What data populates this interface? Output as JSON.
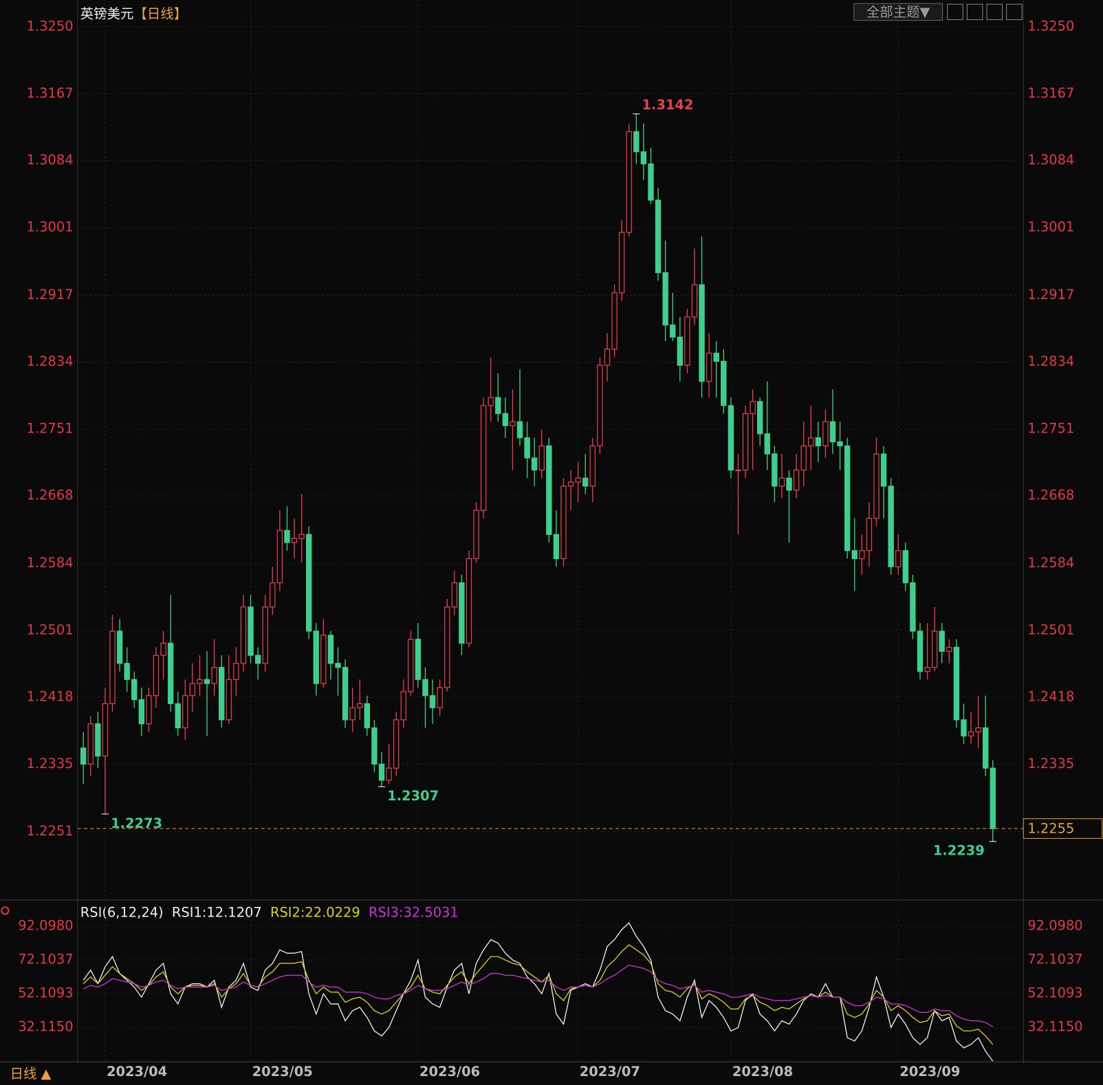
{
  "chart_data": [
    {
      "type": "candlestick",
      "title": "英镑美元",
      "period": "【日线】",
      "up_color": "#e8404f",
      "down_color": "#3ecf8e",
      "last_price_color": "#e8a33a",
      "xlim": [
        -0.8,
        129.2
      ],
      "xticks": [
        {
          "value": 3,
          "label": "2023/04"
        },
        {
          "value": 23,
          "label": "2023/05"
        },
        {
          "value": 46,
          "label": "2023/06"
        },
        {
          "value": 68,
          "label": "2023/07"
        },
        {
          "value": 89,
          "label": "2023/08"
        },
        {
          "value": 112,
          "label": "2023/09"
        }
      ],
      "ylim": [
        1.2168,
        1.3279
      ],
      "yticks": [
        {
          "value": 1.325,
          "label": "1.3250"
        },
        1.3167,
        1.3084,
        1.3001,
        1.2917,
        1.2834,
        1.2751,
        1.2668,
        1.2584,
        1.2501,
        1.2418,
        1.2335,
        1.2251
      ],
      "annotations": [
        1.3142,
        1.2307,
        1.2273,
        1.2239
      ],
      "candles": [
        [
          1.2355,
          1.2375,
          1.231,
          1.2335
        ],
        [
          1.2335,
          1.2395,
          1.232,
          1.2385
        ],
        [
          1.2385,
          1.24,
          1.233,
          1.2345
        ],
        [
          1.2345,
          1.243,
          1.2273,
          1.241
        ],
        [
          1.241,
          1.252,
          1.24,
          1.25
        ],
        [
          1.25,
          1.2515,
          1.245,
          1.246
        ],
        [
          1.246,
          1.248,
          1.2425,
          1.244
        ],
        [
          1.244,
          1.245,
          1.2405,
          1.2415
        ],
        [
          1.2415,
          1.243,
          1.237,
          1.2385
        ],
        [
          1.2385,
          1.243,
          1.2375,
          1.242
        ],
        [
          1.242,
          1.248,
          1.2405,
          1.247
        ],
        [
          1.247,
          1.25,
          1.244,
          1.2485
        ],
        [
          1.2485,
          1.2545,
          1.24,
          1.241
        ],
        [
          1.241,
          1.2425,
          1.237,
          1.238
        ],
        [
          1.238,
          1.244,
          1.2365,
          1.242
        ],
        [
          1.242,
          1.246,
          1.24,
          1.2435
        ],
        [
          1.2435,
          1.247,
          1.242,
          1.244
        ],
        [
          1.244,
          1.2475,
          1.237,
          1.2435
        ],
        [
          1.2435,
          1.249,
          1.242,
          1.2455
        ],
        [
          1.2455,
          1.247,
          1.238,
          1.239
        ],
        [
          1.239,
          1.247,
          1.2385,
          1.244
        ],
        [
          1.244,
          1.248,
          1.242,
          1.246
        ],
        [
          1.246,
          1.2545,
          1.245,
          1.253
        ],
        [
          1.253,
          1.2545,
          1.246,
          1.247
        ],
        [
          1.247,
          1.248,
          1.244,
          1.246
        ],
        [
          1.246,
          1.2545,
          1.245,
          1.253
        ],
        [
          1.253,
          1.258,
          1.252,
          1.256
        ],
        [
          1.256,
          1.265,
          1.255,
          1.2625
        ],
        [
          1.2625,
          1.2655,
          1.26,
          1.261
        ],
        [
          1.261,
          1.264,
          1.259,
          1.2615
        ],
        [
          1.2615,
          1.267,
          1.2585,
          1.262
        ],
        [
          1.262,
          1.263,
          1.249,
          1.25
        ],
        [
          1.25,
          1.251,
          1.242,
          1.2435
        ],
        [
          1.2435,
          1.2515,
          1.243,
          1.2495
        ],
        [
          1.2495,
          1.25,
          1.244,
          1.246
        ],
        [
          1.246,
          1.248,
          1.242,
          1.2455
        ],
        [
          1.2455,
          1.2465,
          1.238,
          1.239
        ],
        [
          1.239,
          1.243,
          1.2375,
          1.2405
        ],
        [
          1.2405,
          1.244,
          1.239,
          1.241
        ],
        [
          1.241,
          1.242,
          1.237,
          1.238
        ],
        [
          1.238,
          1.239,
          1.2325,
          1.2335
        ],
        [
          1.2335,
          1.235,
          1.2307,
          1.2315
        ],
        [
          1.2315,
          1.236,
          1.231,
          1.233
        ],
        [
          1.233,
          1.24,
          1.232,
          1.239
        ],
        [
          1.239,
          1.244,
          1.238,
          1.2425
        ],
        [
          1.2425,
          1.25,
          1.242,
          1.249
        ],
        [
          1.249,
          1.251,
          1.243,
          1.244
        ],
        [
          1.244,
          1.2455,
          1.238,
          1.242
        ],
        [
          1.242,
          1.244,
          1.2385,
          1.2405
        ],
        [
          1.2405,
          1.244,
          1.2395,
          1.243
        ],
        [
          1.243,
          1.254,
          1.2425,
          1.253
        ],
        [
          1.253,
          1.2575,
          1.252,
          1.256
        ],
        [
          1.256,
          1.257,
          1.247,
          1.2485
        ],
        [
          1.2485,
          1.26,
          1.248,
          1.259
        ],
        [
          1.259,
          1.266,
          1.2585,
          1.265
        ],
        [
          1.265,
          1.279,
          1.264,
          1.278
        ],
        [
          1.278,
          1.284,
          1.276,
          1.279
        ],
        [
          1.279,
          1.282,
          1.276,
          1.277
        ],
        [
          1.277,
          1.279,
          1.274,
          1.2755
        ],
        [
          1.2755,
          1.28,
          1.27,
          1.276
        ],
        [
          1.276,
          1.2825,
          1.273,
          1.274
        ],
        [
          1.274,
          1.276,
          1.269,
          1.2715
        ],
        [
          1.2715,
          1.274,
          1.268,
          1.27
        ],
        [
          1.27,
          1.275,
          1.269,
          1.273
        ],
        [
          1.273,
          1.274,
          1.261,
          1.262
        ],
        [
          1.262,
          1.265,
          1.258,
          1.259
        ],
        [
          1.259,
          1.269,
          1.258,
          1.268
        ],
        [
          1.268,
          1.27,
          1.265,
          1.2685
        ],
        [
          1.2685,
          1.271,
          1.266,
          1.269
        ],
        [
          1.269,
          1.272,
          1.267,
          1.268
        ],
        [
          1.268,
          1.274,
          1.266,
          1.273
        ],
        [
          1.273,
          1.284,
          1.272,
          1.283
        ],
        [
          1.283,
          1.287,
          1.281,
          1.285
        ],
        [
          1.285,
          1.293,
          1.284,
          1.292
        ],
        [
          1.292,
          1.301,
          1.291,
          1.2995
        ],
        [
          1.2995,
          1.313,
          1.299,
          1.312
        ],
        [
          1.312,
          1.3142,
          1.308,
          1.3095
        ],
        [
          1.3095,
          1.313,
          1.306,
          1.308
        ],
        [
          1.308,
          1.31,
          1.303,
          1.3035
        ],
        [
          1.3035,
          1.305,
          1.2935,
          1.2945
        ],
        [
          1.2945,
          1.2985,
          1.286,
          1.288
        ],
        [
          1.288,
          1.292,
          1.286,
          1.2865
        ],
        [
          1.2865,
          1.289,
          1.281,
          1.283
        ],
        [
          1.283,
          1.29,
          1.282,
          1.289
        ],
        [
          1.289,
          1.2975,
          1.288,
          1.293
        ],
        [
          1.293,
          1.299,
          1.279,
          1.281
        ],
        [
          1.281,
          1.287,
          1.279,
          1.2845
        ],
        [
          1.2845,
          1.286,
          1.279,
          1.2835
        ],
        [
          1.2835,
          1.285,
          1.277,
          1.278
        ],
        [
          1.278,
          1.279,
          1.269,
          1.27
        ],
        [
          1.27,
          1.272,
          1.262,
          1.27
        ],
        [
          1.27,
          1.278,
          1.269,
          1.277
        ],
        [
          1.277,
          1.28,
          1.27,
          1.2785
        ],
        [
          1.2785,
          1.279,
          1.273,
          1.2745
        ],
        [
          1.2745,
          1.281,
          1.27,
          1.272
        ],
        [
          1.272,
          1.273,
          1.266,
          1.268
        ],
        [
          1.268,
          1.272,
          1.2665,
          1.269
        ],
        [
          1.269,
          1.27,
          1.261,
          1.2675
        ],
        [
          1.2675,
          1.272,
          1.2665,
          1.27
        ],
        [
          1.27,
          1.276,
          1.268,
          1.273
        ],
        [
          1.273,
          1.278,
          1.27,
          1.274
        ],
        [
          1.274,
          1.276,
          1.271,
          1.273
        ],
        [
          1.273,
          1.2775,
          1.2715,
          1.276
        ],
        [
          1.276,
          1.28,
          1.272,
          1.2735
        ],
        [
          1.2735,
          1.276,
          1.27,
          1.273
        ],
        [
          1.273,
          1.274,
          1.259,
          1.26
        ],
        [
          1.26,
          1.264,
          1.255,
          1.259
        ],
        [
          1.259,
          1.262,
          1.257,
          1.26
        ],
        [
          1.26,
          1.266,
          1.258,
          1.264
        ],
        [
          1.264,
          1.274,
          1.263,
          1.272
        ],
        [
          1.272,
          1.273,
          1.264,
          1.268
        ],
        [
          1.268,
          1.269,
          1.257,
          1.258
        ],
        [
          1.258,
          1.262,
          1.257,
          1.26
        ],
        [
          1.26,
          1.261,
          1.255,
          1.256
        ],
        [
          1.256,
          1.257,
          1.249,
          1.25
        ],
        [
          1.25,
          1.251,
          1.244,
          1.245
        ],
        [
          1.245,
          1.251,
          1.244,
          1.2455
        ],
        [
          1.2455,
          1.253,
          1.245,
          1.25
        ],
        [
          1.25,
          1.251,
          1.246,
          1.2475
        ],
        [
          1.2475,
          1.249,
          1.246,
          1.248
        ],
        [
          1.248,
          1.249,
          1.238,
          1.239
        ],
        [
          1.239,
          1.241,
          1.236,
          1.237
        ],
        [
          1.237,
          1.24,
          1.236,
          1.2375
        ],
        [
          1.2375,
          1.242,
          1.2355,
          1.238
        ],
        [
          1.238,
          1.242,
          1.232,
          1.233
        ],
        [
          1.233,
          1.234,
          1.2239,
          1.2255
        ]
      ]
    },
    {
      "type": "line",
      "label": "RSI(6,12,24)",
      "xlim": [
        -0.8,
        129.2
      ],
      "ylim": [
        12.53,
        105.43
      ],
      "yticks": [
        {
          "value": 92.098,
          "label": "92.0980"
        },
        72.1037,
        52.1093,
        {
          "value": 32.115,
          "label": "32.1150"
        }
      ],
      "series": [
        {
          "name": "RSI1:12.1207",
          "color": "#f0f0f0",
          "values": [
            60,
            66,
            58,
            68,
            74,
            64,
            60,
            56,
            50,
            58,
            66,
            70,
            52,
            46,
            56,
            58,
            58,
            56,
            60,
            44,
            56,
            60,
            70,
            56,
            54,
            66,
            70,
            78,
            76,
            76,
            77,
            52,
            40,
            52,
            46,
            46,
            36,
            42,
            44,
            38,
            30,
            27,
            32,
            42,
            52,
            60,
            72,
            50,
            46,
            44,
            56,
            66,
            70,
            52,
            70,
            78,
            84,
            82,
            76,
            72,
            70,
            62,
            58,
            52,
            64,
            40,
            34,
            54,
            56,
            58,
            56,
            66,
            80,
            84,
            90,
            94,
            86,
            80,
            72,
            50,
            42,
            40,
            36,
            50,
            60,
            38,
            48,
            44,
            38,
            30,
            32,
            48,
            52,
            40,
            36,
            30,
            36,
            34,
            40,
            48,
            52,
            50,
            58,
            50,
            50,
            26,
            24,
            30,
            44,
            62,
            50,
            32,
            40,
            34,
            26,
            22,
            26,
            42,
            36,
            38,
            24,
            20,
            22,
            26,
            18,
            12.1207
          ]
        },
        {
          "name": "RSI2:22.0229",
          "color": "#d8d020",
          "values": [
            58,
            62,
            58,
            63,
            68,
            64,
            61,
            58,
            54,
            57,
            62,
            65,
            56,
            52,
            56,
            57,
            57,
            56,
            58,
            50,
            55,
            58,
            64,
            57,
            56,
            62,
            65,
            70,
            70,
            70,
            71,
            60,
            52,
            56,
            53,
            53,
            47,
            49,
            50,
            47,
            42,
            40,
            42,
            47,
            52,
            56,
            63,
            55,
            53,
            52,
            57,
            62,
            65,
            58,
            64,
            69,
            74,
            74,
            72,
            70,
            69,
            65,
            62,
            59,
            63,
            52,
            48,
            55,
            56,
            57,
            56,
            60,
            68,
            72,
            77,
            81,
            78,
            75,
            70,
            58,
            54,
            53,
            50,
            55,
            58,
            49,
            52,
            50,
            47,
            43,
            43,
            49,
            51,
            47,
            45,
            42,
            44,
            43,
            46,
            49,
            51,
            50,
            53,
            50,
            50,
            40,
            38,
            40,
            46,
            54,
            50,
            42,
            45,
            42,
            38,
            35,
            36,
            42,
            39,
            40,
            33,
            30,
            30,
            31,
            27,
            22.0229
          ]
        },
        {
          "name": "RSI3:32.5031",
          "color": "#d030d8",
          "values": [
            55,
            57,
            56,
            58,
            61,
            60,
            59,
            58,
            56,
            57,
            59,
            60,
            57,
            55,
            56,
            56,
            56,
            56,
            57,
            54,
            55,
            56,
            59,
            57,
            56,
            58,
            60,
            62,
            63,
            63,
            63,
            59,
            56,
            57,
            56,
            56,
            53,
            53,
            53,
            52,
            50,
            49,
            49,
            51,
            52,
            54,
            57,
            55,
            54,
            54,
            55,
            57,
            59,
            57,
            59,
            61,
            64,
            64,
            63,
            63,
            62,
            61,
            60,
            59,
            60,
            56,
            54,
            56,
            56,
            57,
            56,
            58,
            61,
            63,
            66,
            69,
            68,
            67,
            65,
            60,
            58,
            57,
            55,
            56,
            57,
            53,
            54,
            53,
            52,
            50,
            50,
            51,
            52,
            50,
            49,
            48,
            48,
            48,
            49,
            50,
            51,
            50,
            51,
            50,
            50,
            47,
            45,
            45,
            47,
            50,
            49,
            46,
            46,
            45,
            43,
            41,
            41,
            43,
            42,
            42,
            39,
            37,
            36,
            36,
            35,
            32.5031
          ]
        }
      ]
    }
  ],
  "toolbar": {
    "theme_button": "全部主题▼"
  },
  "footer": {
    "period": "日线 ▲"
  }
}
